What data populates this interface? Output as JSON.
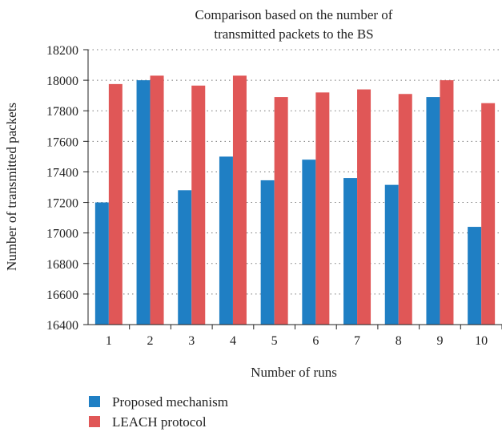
{
  "chart_data": {
    "type": "bar",
    "title_lines": [
      "Comparison based on the number of",
      "transmitted packets to the BS"
    ],
    "xlabel": "Number of runs",
    "ylabel": "Number of transmitted packets",
    "categories": [
      "1",
      "2",
      "3",
      "4",
      "5",
      "6",
      "7",
      "8",
      "9",
      "10"
    ],
    "ylim": [
      16400,
      18200
    ],
    "yticks": [
      16400,
      16600,
      16800,
      17000,
      17200,
      17400,
      17600,
      17800,
      18000,
      18200
    ],
    "grid": "dotted-horizontal",
    "legend_position": "bottom-left",
    "series": [
      {
        "name": "Proposed mechanism",
        "color": "#1f7fc4",
        "values": [
          17200,
          18000,
          17280,
          17500,
          17345,
          17480,
          17360,
          17315,
          17890,
          17040
        ]
      },
      {
        "name": "LEACH protocol",
        "color": "#e05757",
        "values": [
          17975,
          18030,
          17965,
          18030,
          17890,
          17920,
          17940,
          17910,
          18000,
          17850
        ]
      }
    ]
  }
}
